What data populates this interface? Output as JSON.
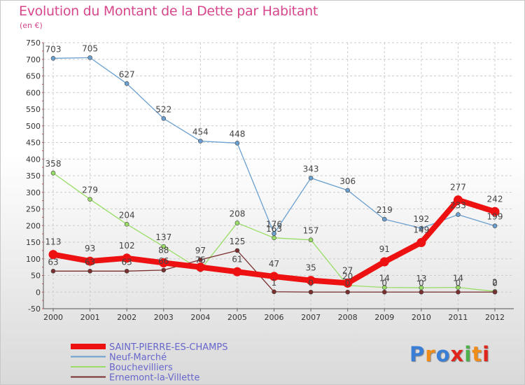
{
  "title": "Evolution du Montant de la Dette par Habitant",
  "subtitle": "(en €)",
  "logo": {
    "text": "Proxiti",
    "colors": [
      "#3a7fd5",
      "#f08c1a",
      "#3a7fd5",
      "#e0261c",
      "#4db04a",
      "#f08c1a",
      "#e0261c"
    ]
  },
  "colors": {
    "title": "#d6478b",
    "legend_text": "#6666cc"
  },
  "chart_data": {
    "type": "line",
    "x": [
      "2000",
      "2001",
      "2002",
      "2003",
      "2004",
      "2005",
      "2006",
      "2007",
      "2008",
      "2009",
      "2010",
      "2011",
      "2012"
    ],
    "ylim": [
      -50,
      750
    ],
    "yticks": [
      -50,
      0,
      50,
      100,
      150,
      200,
      250,
      300,
      350,
      400,
      450,
      500,
      550,
      600,
      650,
      700,
      750
    ],
    "grid": true,
    "legend_position": "bottom-left",
    "series": [
      {
        "name": "SAINT-PIERRE-ES-CHAMPS",
        "color": "#ee1111",
        "width": 8,
        "values": [
          113,
          93,
          102,
          88,
          75,
          61,
          47,
          35,
          27,
          91,
          149,
          277,
          242
        ],
        "labels": [
          "113",
          "93",
          "102",
          "88",
          "",
          "61",
          "47",
          "35",
          "27",
          "91",
          "149",
          "277",
          "242"
        ]
      },
      {
        "name": "Neuf-Marché",
        "color": "#6a9fcf",
        "width": 1.3,
        "values": [
          703,
          705,
          627,
          522,
          454,
          448,
          176,
          343,
          306,
          219,
          192,
          233,
          199
        ],
        "labels": [
          "703",
          "705",
          "627",
          "522",
          "454",
          "448",
          "176",
          "343",
          "306",
          "219",
          "192",
          "233",
          "199"
        ]
      },
      {
        "name": "Bouchevilliers",
        "color": "#99dd66",
        "width": 1.3,
        "values": [
          358,
          279,
          204,
          137,
          67,
          208,
          163,
          157,
          20,
          14,
          13,
          14,
          2
        ],
        "labels": [
          "358",
          "279",
          "204",
          "137",
          "",
          "208",
          "163",
          "157",
          "20",
          "14",
          "13",
          "14",
          "2"
        ]
      },
      {
        "name": "Ernemont-la-Villette",
        "color": "#7a2e2e",
        "width": 1.3,
        "values": [
          63,
          63,
          63,
          66,
          97,
          125,
          1,
          0,
          0,
          0,
          0,
          0,
          0
        ],
        "labels": [
          "63",
          "63",
          "63",
          "66",
          "97",
          "125",
          "1",
          "0",
          "0",
          "0",
          "0",
          "0",
          "0"
        ]
      }
    ],
    "extra_labels": [
      "75"
    ]
  }
}
